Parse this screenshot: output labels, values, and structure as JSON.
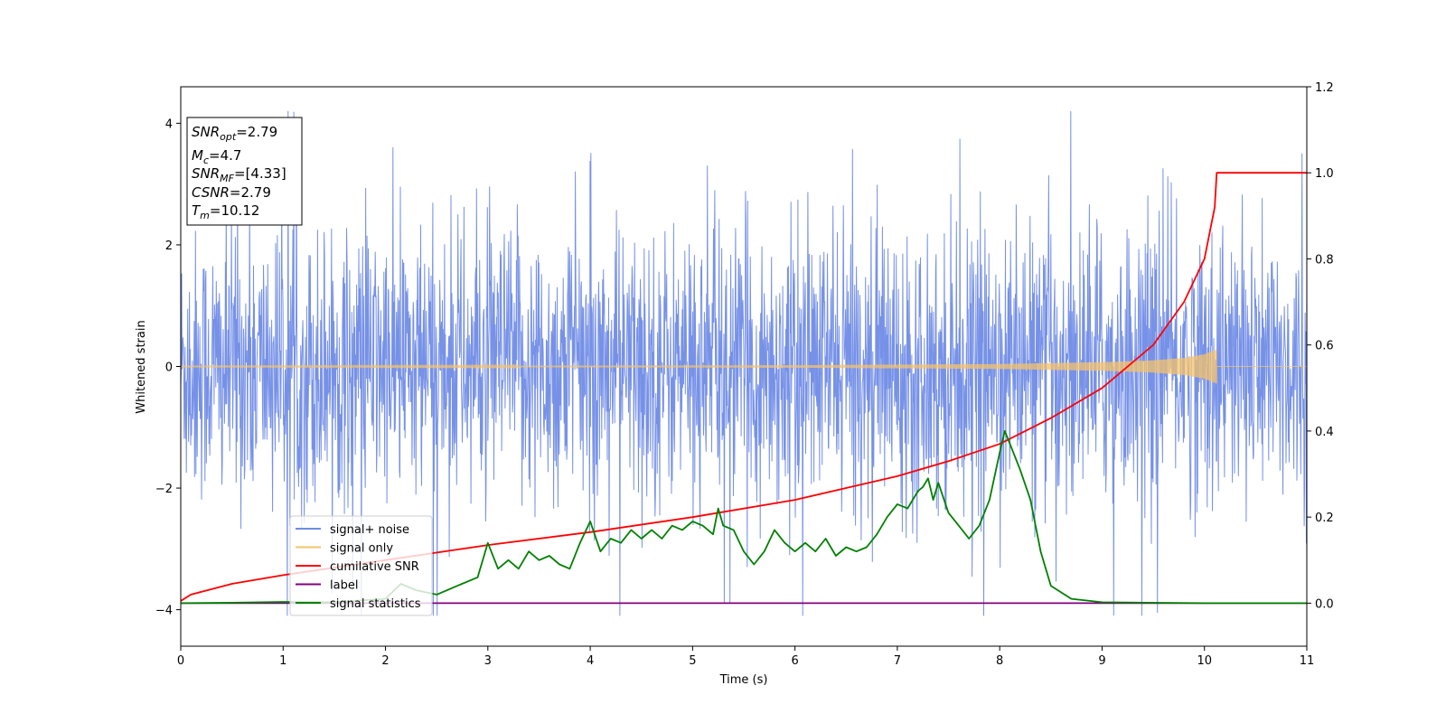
{
  "chart_data": {
    "type": "line",
    "xlabel": "Time (s)",
    "ylabel_left": "Whitened strain",
    "ylabel_right": "",
    "xlim": [
      0,
      11
    ],
    "ylim_left": [
      -4.6,
      4.6
    ],
    "ylim_right": [
      -0.1,
      1.2
    ],
    "x_ticks": [
      "0",
      "1",
      "2",
      "3",
      "4",
      "5",
      "6",
      "7",
      "8",
      "9",
      "10",
      "11"
    ],
    "y_ticks_left": [
      "4",
      "2",
      "0",
      "−2",
      "−4"
    ],
    "y_ticks_right": [
      "1.2",
      "1.0",
      "0.8",
      "0.6",
      "0.4",
      "0.2",
      "0.0"
    ],
    "grid": false,
    "legend_position": "lower-left",
    "info_box": {
      "snr_opt_name": "SNR",
      "snr_opt_sub": "opt",
      "snr_opt_value": "=2.79",
      "mc_name": "M",
      "mc_sub": "c",
      "mc_value": "=4.7",
      "snr_mf_name": "SNR",
      "snr_mf_sub": "MF",
      "snr_mf_value": "=[4.33]",
      "csnr_name": "CSNR",
      "csnr_value": "=2.79",
      "tm_name": "T",
      "tm_sub": "m",
      "tm_value": "=10.12"
    },
    "series": [
      {
        "name": "signal+ noise",
        "axis": "left",
        "color": "#6f8be6",
        "description": "whitened noisy strain, approx. +/-1 std with spikes to ~4",
        "x_range": [
          0,
          11
        ],
        "envelope": [
          -4.1,
          4.2
        ]
      },
      {
        "name": "signal only",
        "axis": "left",
        "color": "#f5c36b",
        "x_range": [
          0,
          10.12
        ],
        "amplitude_t": [
          0,
          3,
          6,
          8,
          9,
          9.5,
          9.8,
          10,
          10.12
        ],
        "amplitude": [
          0.005,
          0.01,
          0.02,
          0.04,
          0.07,
          0.1,
          0.14,
          0.2,
          0.28
        ]
      },
      {
        "name": "cumilative SNR",
        "axis": "right",
        "color": "#ff0000",
        "x": [
          0,
          0.1,
          0.5,
          1,
          2,
          3,
          4,
          5,
          6,
          7,
          7.5,
          8,
          8.5,
          9,
          9.5,
          9.8,
          10,
          10.1,
          10.12,
          11
        ],
        "y": [
          0.005,
          0.02,
          0.045,
          0.065,
          0.1,
          0.135,
          0.165,
          0.2,
          0.24,
          0.295,
          0.33,
          0.37,
          0.43,
          0.5,
          0.6,
          0.7,
          0.8,
          0.92,
          1.0,
          1.0
        ]
      },
      {
        "name": "label",
        "axis": "right",
        "color": "#800080",
        "x": [
          0,
          11
        ],
        "y": [
          0,
          0
        ]
      },
      {
        "name": "signal statistics",
        "axis": "right",
        "color": "#008000",
        "x": [
          0,
          0.5,
          1,
          1.5,
          2,
          2.15,
          2.3,
          2.5,
          2.7,
          2.9,
          3.0,
          3.1,
          3.2,
          3.3,
          3.4,
          3.5,
          3.6,
          3.7,
          3.8,
          3.9,
          4.0,
          4.1,
          4.2,
          4.3,
          4.4,
          4.5,
          4.6,
          4.7,
          4.8,
          4.9,
          5.0,
          5.1,
          5.2,
          5.25,
          5.3,
          5.4,
          5.5,
          5.6,
          5.7,
          5.8,
          5.9,
          6.0,
          6.1,
          6.2,
          6.3,
          6.4,
          6.5,
          6.6,
          6.7,
          6.8,
          6.9,
          7.0,
          7.1,
          7.2,
          7.25,
          7.3,
          7.35,
          7.4,
          7.5,
          7.6,
          7.7,
          7.8,
          7.9,
          8.0,
          8.05,
          8.1,
          8.2,
          8.3,
          8.4,
          8.5,
          8.7,
          9.0,
          10,
          11
        ],
        "y": [
          0,
          0.001,
          0.003,
          0.002,
          0.01,
          0.045,
          0.03,
          0.02,
          0.04,
          0.06,
          0.14,
          0.08,
          0.1,
          0.08,
          0.12,
          0.1,
          0.11,
          0.09,
          0.08,
          0.14,
          0.19,
          0.12,
          0.15,
          0.14,
          0.17,
          0.15,
          0.17,
          0.15,
          0.18,
          0.17,
          0.19,
          0.18,
          0.16,
          0.22,
          0.18,
          0.17,
          0.12,
          0.09,
          0.12,
          0.17,
          0.14,
          0.12,
          0.14,
          0.12,
          0.15,
          0.11,
          0.13,
          0.12,
          0.13,
          0.16,
          0.2,
          0.23,
          0.22,
          0.26,
          0.27,
          0.29,
          0.24,
          0.28,
          0.21,
          0.18,
          0.15,
          0.18,
          0.24,
          0.35,
          0.4,
          0.37,
          0.31,
          0.24,
          0.12,
          0.04,
          0.01,
          0.002,
          0,
          0
        ]
      }
    ]
  }
}
